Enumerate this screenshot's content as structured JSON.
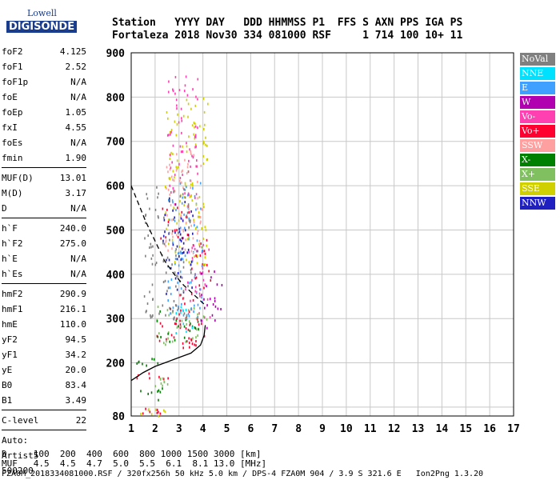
{
  "logo": {
    "top": "Lowell",
    "bottom": "DIGISONDE"
  },
  "header": {
    "row1": "Station   YYYY DAY   DDD HHMMSS P1  FFS S AXN PPS IGA PS",
    "row2": "Fortaleza 2018 Nov30 334 081000 RSF     1 714 100 10+ 11"
  },
  "params": [
    {
      "k": "foF2",
      "v": "4.125"
    },
    {
      "k": "foF1",
      "v": "2.52"
    },
    {
      "k": "foF1p",
      "v": "N/A"
    },
    {
      "k": "foE",
      "v": "N/A"
    },
    {
      "k": "foEp",
      "v": "1.05"
    },
    {
      "k": "fxI",
      "v": "4.55"
    },
    {
      "k": "foEs",
      "v": "N/A"
    },
    {
      "k": "fmin",
      "v": "1.90"
    },
    {
      "sep": true
    },
    {
      "k": "MUF(D)",
      "v": "13.01"
    },
    {
      "k": "M(D)",
      "v": "3.17"
    },
    {
      "k": "D",
      "v": "N/A"
    },
    {
      "sep": true
    },
    {
      "k": "h`F",
      "v": "240.0"
    },
    {
      "k": "h`F2",
      "v": "275.0"
    },
    {
      "k": "h`E",
      "v": "N/A"
    },
    {
      "k": "h`Es",
      "v": "N/A"
    },
    {
      "sep": true
    },
    {
      "k": "hmF2",
      "v": "290.9"
    },
    {
      "k": "hmF1",
      "v": "216.1"
    },
    {
      "k": "hmE",
      "v": "110.0"
    },
    {
      "k": "yF2",
      "v": "94.5"
    },
    {
      "k": "yF1",
      "v": "34.2"
    },
    {
      "k": "yE",
      "v": "20.0"
    },
    {
      "k": "B0",
      "v": "83.4"
    },
    {
      "k": "B1",
      "v": "3.49"
    },
    {
      "sep": true
    },
    {
      "k": "C-level",
      "v": "22"
    },
    {
      "sep": true
    },
    {
      "k": "Auto:",
      "v": ""
    },
    {
      "k": "Artist5",
      "v": ""
    },
    {
      "k": "500200",
      "v": ""
    }
  ],
  "footer": {
    "line1": "D     100  200  400  600  800 1000 1500 3000 [km]",
    "line2": "MUF   4.5  4.5  4.7  5.0  5.5  6.1  8.1 13.0 [MHz]",
    "line3": "FZA0M_2018334081000.RSF / 320fx256h 50 kHz 5.0 km / DPS-4 FZA0M 904 / 3.9 S 321.6 E   Ion2Png 1.3.20"
  },
  "legend": [
    {
      "label": "NoVal",
      "color": "#808080"
    },
    {
      "label": "NNE",
      "color": "#00e0ff"
    },
    {
      "label": "E",
      "color": "#40a0ff"
    },
    {
      "label": "W",
      "color": "#b000b0"
    },
    {
      "label": "Vo-",
      "color": "#ff40b0"
    },
    {
      "label": "Vo+",
      "color": "#ff0030"
    },
    {
      "label": "SSW",
      "color": "#ffa0a0"
    },
    {
      "label": "X-",
      "color": "#008000"
    },
    {
      "label": "X+",
      "color": "#80c060"
    },
    {
      "label": "SSE",
      "color": "#d0d000"
    },
    {
      "label": "NNW",
      "color": "#2020c0"
    }
  ],
  "chart_data": {
    "type": "scatter",
    "x_ticks": [
      1,
      2,
      3,
      4,
      5,
      6,
      7,
      8,
      9,
      10,
      11,
      12,
      13,
      14,
      15,
      16,
      17
    ],
    "y_ticks": [
      100,
      200,
      300,
      400,
      500,
      600,
      700,
      800,
      900
    ],
    "y_tick_labels": [
      "",
      "200",
      "300",
      "400",
      "500",
      "600",
      "700",
      "800",
      "900"
    ],
    "y_bottom_label": "80",
    "xlim": [
      1,
      17
    ],
    "ylim": [
      80,
      900
    ],
    "grid": true,
    "profile_curve": {
      "color": "#000000",
      "points": [
        [
          1.0,
          160
        ],
        [
          1.5,
          178
        ],
        [
          2.0,
          192
        ],
        [
          2.5,
          202
        ],
        [
          3.0,
          212
        ],
        [
          3.5,
          222
        ],
        [
          3.9,
          240
        ],
        [
          4.05,
          262
        ],
        [
          4.1,
          285
        ]
      ]
    },
    "muf_dashed_curve": {
      "color": "#000000",
      "points": [
        [
          1.0,
          600
        ],
        [
          1.3,
          560
        ],
        [
          1.6,
          520
        ],
        [
          2.0,
          475
        ],
        [
          2.4,
          430
        ],
        [
          2.8,
          400
        ],
        [
          3.2,
          375
        ],
        [
          3.6,
          355
        ],
        [
          3.9,
          340
        ],
        [
          4.1,
          330
        ]
      ]
    },
    "trace_clusters": [
      {
        "series": "Vo+",
        "f": [
          1.8,
          4.1
        ],
        "h": [
          230,
          300
        ]
      },
      {
        "series": "Vo+",
        "f": [
          2.6,
          3.6
        ],
        "h": [
          280,
          360
        ]
      },
      {
        "series": "Vo+",
        "f": [
          3.5,
          4.3
        ],
        "h": [
          300,
          480
        ]
      },
      {
        "series": "W",
        "f": [
          3.8,
          4.8
        ],
        "h": [
          280,
          420
        ]
      },
      {
        "series": "Vo-",
        "f": [
          3.2,
          4.3
        ],
        "h": [
          300,
          470
        ]
      },
      {
        "series": "X+",
        "f": [
          2.0,
          4.2
        ],
        "h": [
          240,
          330
        ]
      },
      {
        "series": "X-",
        "f": [
          2.0,
          3.8
        ],
        "h": [
          250,
          320
        ]
      },
      {
        "series": "E",
        "f": [
          2.5,
          4.0
        ],
        "h": [
          300,
          620
        ]
      },
      {
        "series": "NNE",
        "f": [
          2.8,
          3.6
        ],
        "h": [
          260,
          330
        ]
      },
      {
        "series": "SSE",
        "f": [
          2.4,
          4.2
        ],
        "h": [
          420,
          800
        ]
      },
      {
        "series": "SSW",
        "f": [
          2.4,
          4.0
        ],
        "h": [
          450,
          700
        ]
      },
      {
        "series": "Vo+",
        "f": [
          2.2,
          3.4
        ],
        "h": [
          480,
          560
        ]
      },
      {
        "series": "NNW",
        "f": [
          2.3,
          3.6
        ],
        "h": [
          350,
          580
        ]
      },
      {
        "series": "Vo-",
        "f": [
          2.5,
          3.8
        ],
        "h": [
          560,
          860
        ]
      },
      {
        "series": "NoVal",
        "f": [
          1.5,
          3.5
        ],
        "h": [
          300,
          600
        ]
      },
      {
        "series": "Vo+",
        "f": [
          1.1,
          2.6
        ],
        "h": [
          165,
          180
        ]
      },
      {
        "series": "X+",
        "f": [
          1.5,
          2.5
        ],
        "h": [
          150,
          175
        ]
      },
      {
        "series": "X-",
        "f": [
          1.2,
          2.5
        ],
        "h": [
          118,
          148
        ]
      },
      {
        "series": "Vo+",
        "f": [
          1.2,
          2.3
        ],
        "h": [
          85,
          100
        ]
      },
      {
        "series": "SSE",
        "f": [
          1.3,
          2.4
        ],
        "h": [
          82,
          100
        ]
      },
      {
        "series": "X-",
        "f": [
          1.2,
          2.1
        ],
        "h": [
          195,
          215
        ]
      }
    ]
  }
}
